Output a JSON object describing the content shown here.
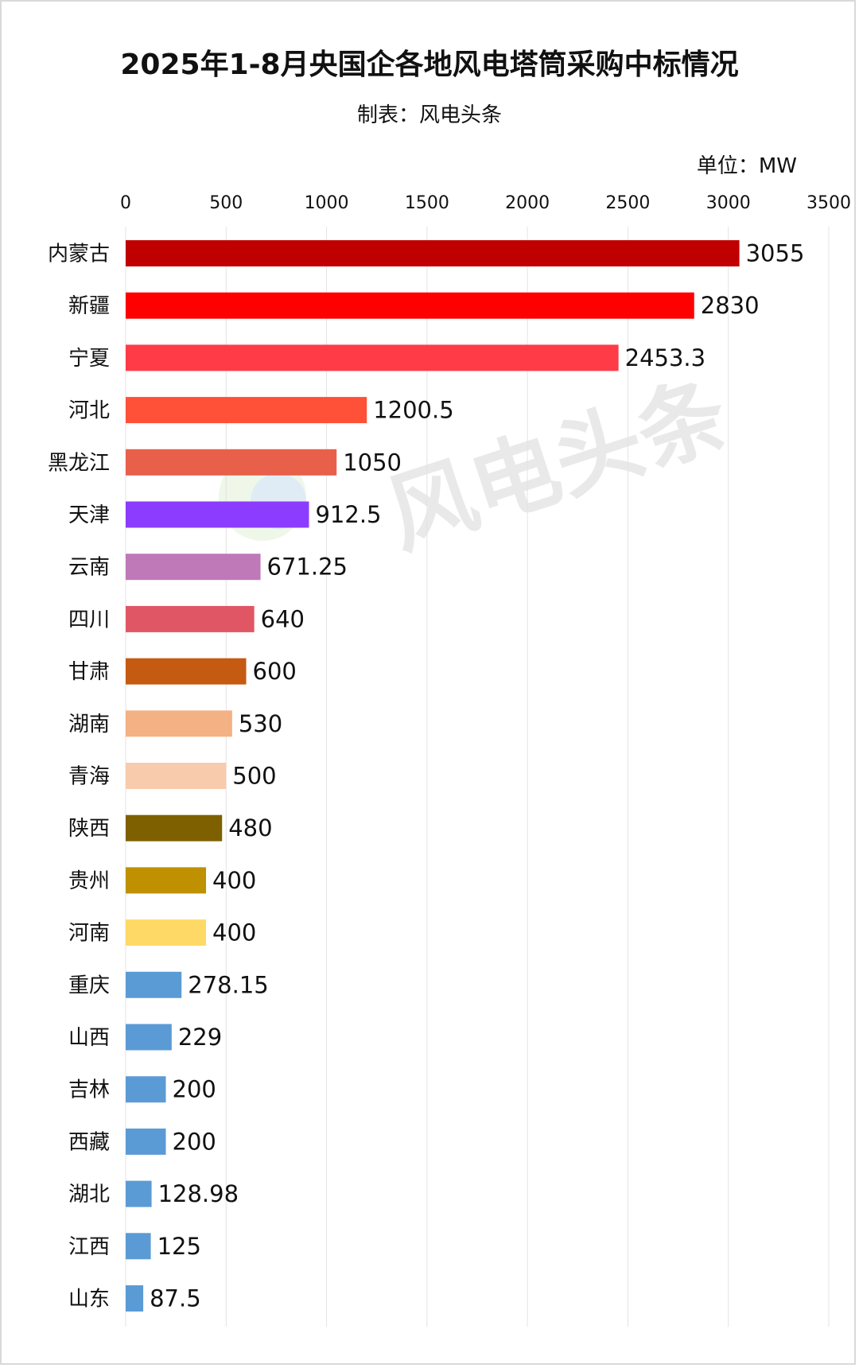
{
  "header": {
    "title": "2025年1-8月央国企各地风电塔筒采购中标情况",
    "subtitle": "制表：风电头条",
    "unit": "单位：MW"
  },
  "watermark": {
    "text": "风电头条"
  },
  "chart_data": {
    "type": "bar",
    "orientation": "horizontal",
    "title": "2025年1-8月央国企各地风电塔筒采购中标情况",
    "xlim": [
      0,
      3500
    ],
    "xticks": [
      0,
      500,
      1000,
      1500,
      2000,
      2500,
      3000,
      3500
    ],
    "grid": true,
    "categories": [
      "内蒙古",
      "新疆",
      "宁夏",
      "河北",
      "黑龙江",
      "天津",
      "云南",
      "四川",
      "甘肃",
      "湖南",
      "青海",
      "陕西",
      "贵州",
      "河南",
      "重庆",
      "山西",
      "吉林",
      "西藏",
      "湖北",
      "江西",
      "山东"
    ],
    "values": [
      3055,
      2830,
      2453.3,
      1200.5,
      1050,
      912.5,
      671.25,
      640,
      600,
      530,
      500,
      480,
      400,
      400,
      278.15,
      229,
      200,
      200,
      128.98,
      125,
      87.5
    ],
    "colors": [
      "#C00000",
      "#FF0000",
      "#FF3B47",
      "#FF5038",
      "#E8604A",
      "#8B3CFF",
      "#BF78B8",
      "#E05664",
      "#C55A11",
      "#F4B183",
      "#F8CBAD",
      "#7F6000",
      "#BF9000",
      "#FFD966",
      "#5B9BD5",
      "#5B9BD5",
      "#5B9BD5",
      "#5B9BD5",
      "#5B9BD5",
      "#5B9BD5",
      "#5B9BD5"
    ]
  }
}
